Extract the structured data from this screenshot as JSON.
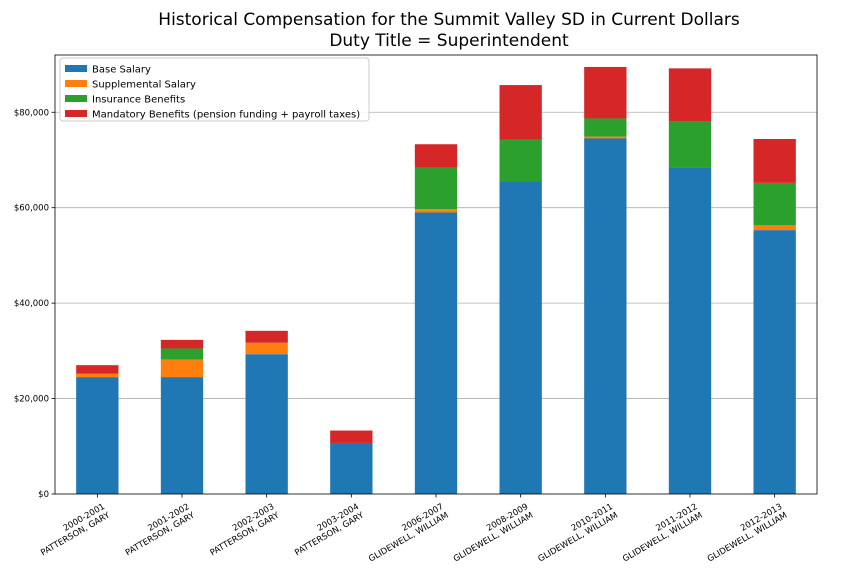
{
  "chart_data": {
    "type": "bar",
    "stacked": true,
    "title": "Historical Compensation for the Summit Valley SD in Current Dollars",
    "subtitle": "Duty Title = Superintendent",
    "xlabel": "",
    "ylabel": "",
    "ylim": [
      0,
      92000
    ],
    "yticks": [
      {
        "value": 0,
        "label": "$0"
      },
      {
        "value": 20000,
        "label": "$20,000"
      },
      {
        "value": 40000,
        "label": "$40,000"
      },
      {
        "value": 60000,
        "label": "$60,000"
      },
      {
        "value": 80000,
        "label": "$80,000"
      }
    ],
    "grid": "y",
    "legend": "top-left",
    "categories": [
      [
        "2000-2001",
        "PATTERSON, GARY"
      ],
      [
        "2001-2002",
        "PATTERSON, GARY"
      ],
      [
        "2002-2003",
        "PATTERSON, GARY"
      ],
      [
        "2003-2004",
        "PATTERSON, GARY"
      ],
      [
        "2006-2007",
        "GLIDEWELL, WILLIAM"
      ],
      [
        "2008-2009",
        "GLIDEWELL, WILLIAM"
      ],
      [
        "2010-2011",
        "GLIDEWELL, WILLIAM"
      ],
      [
        "2011-2012",
        "GLIDEWELL, WILLIAM"
      ],
      [
        "2012-2013",
        "GLIDEWELL, WILLIAM"
      ]
    ],
    "series": [
      {
        "name": "Base Salary",
        "color": "#1f77b4",
        "values": [
          24500,
          24500,
          29300,
          10700,
          59000,
          65500,
          74500,
          68500,
          55300
        ]
      },
      {
        "name": "Supplemental Salary",
        "color": "#ff7f0e",
        "values": [
          700,
          3700,
          2400,
          0,
          700,
          0,
          400,
          0,
          1000
        ]
      },
      {
        "name": "Insurance Benefits",
        "color": "#2ca02c",
        "values": [
          0,
          2300,
          0,
          0,
          8700,
          8800,
          3800,
          9500,
          8900
        ]
      },
      {
        "name": "Mandatory Benefits (pension funding + payroll taxes)",
        "color": "#d62728",
        "values": [
          1800,
          1800,
          2500,
          2600,
          4900,
          11400,
          10800,
          11200,
          9200
        ]
      }
    ]
  }
}
